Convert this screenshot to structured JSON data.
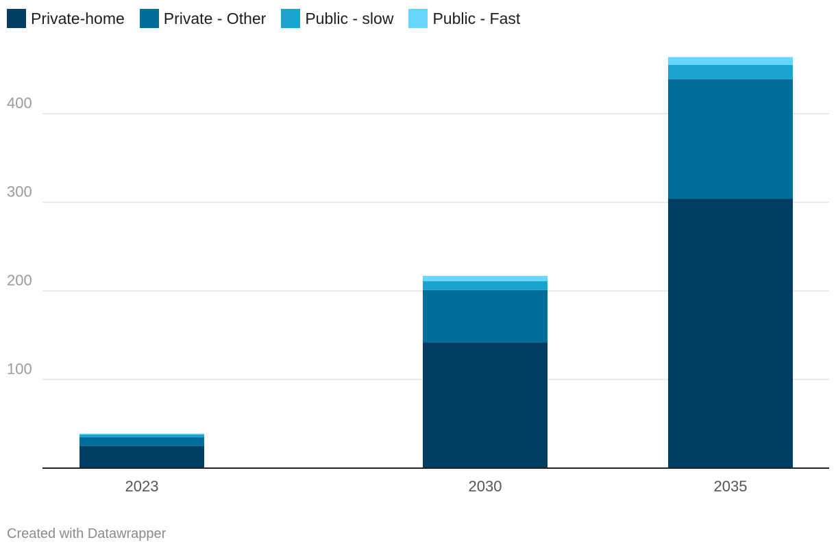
{
  "chart_data": {
    "type": "bar",
    "stacked": true,
    "categories": [
      "2023",
      "2030",
      "2035"
    ],
    "series": [
      {
        "name": "Private-home",
        "values": [
          25,
          142,
          304
        ],
        "color": "#003d62"
      },
      {
        "name": "Private - Other",
        "values": [
          10,
          59,
          135
        ],
        "color": "#006e99"
      },
      {
        "name": "Public - slow",
        "values": [
          3,
          10,
          16
        ],
        "color": "#1aa3d1"
      },
      {
        "name": "Public - Fast",
        "values": [
          1,
          6,
          9
        ],
        "color": "#66d6ff"
      }
    ],
    "ylim": [
      0,
      465
    ],
    "yticks": [
      100,
      200,
      300,
      400
    ],
    "grid": true,
    "legend_position": "top-left",
    "title": "",
    "xlabel": "",
    "ylabel": ""
  },
  "credit": "Created with Datawrapper"
}
